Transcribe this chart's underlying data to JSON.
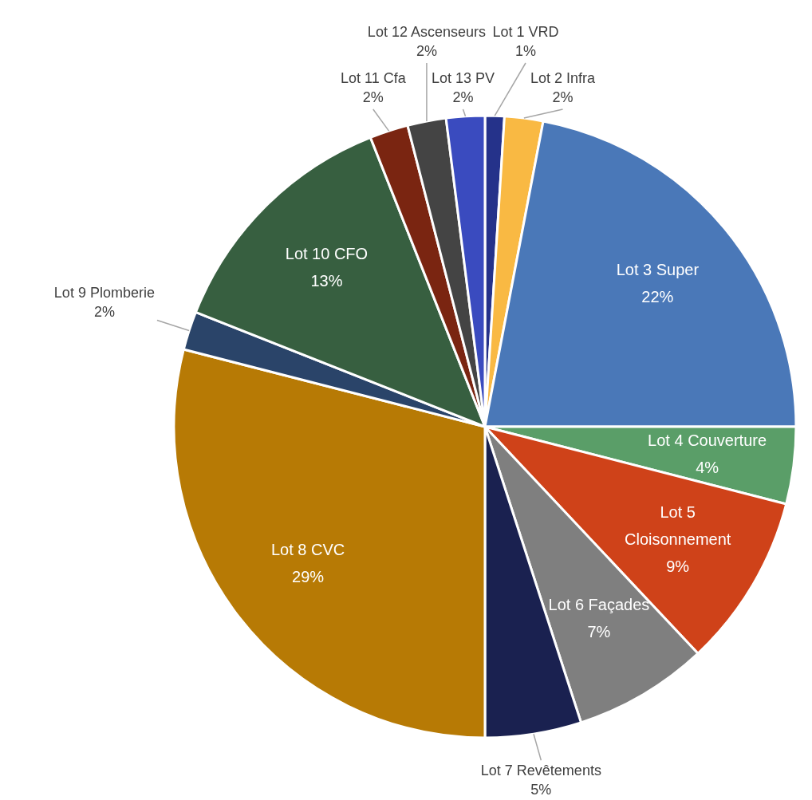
{
  "chart_data": {
    "type": "pie",
    "categories": [
      "Lot 1 VRD",
      "Lot 2 Infra",
      "Lot 3 Super",
      "Lot 4 Couverture",
      "Lot 5 Cloisonnement",
      "Lot 6 Façades",
      "Lot 7 Revêtements",
      "Lot 8 CVC",
      "Lot 9 Plomberie",
      "Lot 10 CFO",
      "Lot 11 Cfa",
      "Lot 12 Ascenseurs",
      "Lot 13 PV"
    ],
    "values": [
      1,
      2,
      22,
      4,
      9,
      7,
      5,
      29,
      2,
      13,
      2,
      2,
      2
    ],
    "value_labels": [
      "1%",
      "2%",
      "22%",
      "4%",
      "9%",
      "7%",
      "5%",
      "29%",
      "2%",
      "13%",
      "2%",
      "2%",
      "2%"
    ],
    "colors": [
      "#25328a",
      "#f9b943",
      "#4a78b8",
      "#5a9e68",
      "#cf4219",
      "#7f7f7f",
      "#1a2150",
      "#b77a05",
      "#2a4469",
      "#375f40",
      "#7a2511",
      "#444444",
      "#3a4bbf"
    ],
    "legend": false
  }
}
